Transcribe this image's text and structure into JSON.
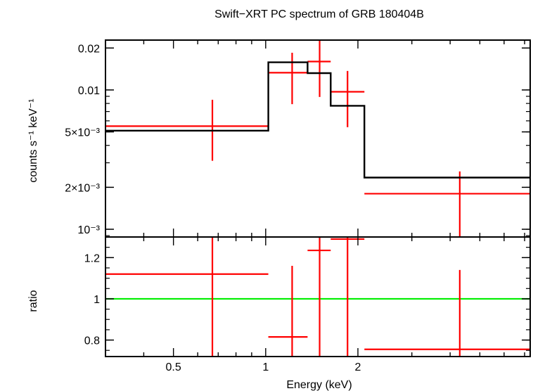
{
  "chart_data": {
    "type": "line",
    "title": "Swift−XRT PC spectrum of GRB 180404B",
    "xlabel": "Energy (keV)",
    "x_scale": "log",
    "xlim": [
      0.3,
      7.3
    ],
    "x_ticks": [
      {
        "value": 0.5,
        "label": "0.5"
      },
      {
        "value": 1,
        "label": "1"
      },
      {
        "value": 2,
        "label": "2"
      }
    ],
    "panels": [
      {
        "name": "spectrum",
        "ylabel": "counts s⁻¹ keV⁻¹",
        "y_scale": "log",
        "ylim": [
          0.00088,
          0.0228
        ],
        "y_ticks": [
          {
            "value": 0.02,
            "label": "0.02"
          },
          {
            "value": 0.01,
            "label": "0.01"
          },
          {
            "value": 0.005,
            "label": "5×10⁻³"
          },
          {
            "value": 0.002,
            "label": "2×10⁻³"
          },
          {
            "value": 0.001,
            "label": "10⁻³"
          }
        ],
        "series": [
          {
            "name": "data",
            "color": "#ff0000",
            "style": "crosses",
            "points": [
              {
                "x": 0.67,
                "x_lo": 0.3,
                "x_hi": 1.02,
                "y": 0.0055,
                "y_lo": 0.0031,
                "y_hi": 0.0085
              },
              {
                "x": 1.22,
                "x_lo": 1.02,
                "x_hi": 1.37,
                "y": 0.0133,
                "y_lo": 0.0079,
                "y_hi": 0.0185
              },
              {
                "x": 1.5,
                "x_lo": 1.37,
                "x_hi": 1.63,
                "y": 0.016,
                "y_lo": 0.0089,
                "y_hi": 0.0228
              },
              {
                "x": 1.85,
                "x_lo": 1.63,
                "x_hi": 2.1,
                "y": 0.0097,
                "y_lo": 0.0054,
                "y_hi": 0.0137
              },
              {
                "x": 4.3,
                "x_lo": 2.1,
                "x_hi": 7.3,
                "y": 0.0018,
                "y_lo": 0.00088,
                "y_hi": 0.0026
              }
            ]
          },
          {
            "name": "model",
            "color": "#000000",
            "style": "step",
            "bins": [
              {
                "x_lo": 0.3,
                "x_hi": 1.02,
                "y": 0.0051
              },
              {
                "x_lo": 1.02,
                "x_hi": 1.37,
                "y": 0.0158
              },
              {
                "x_lo": 1.37,
                "x_hi": 1.63,
                "y": 0.0132
              },
              {
                "x_lo": 1.63,
                "x_hi": 2.1,
                "y": 0.0077
              },
              {
                "x_lo": 2.1,
                "x_hi": 7.3,
                "y": 0.00235
              }
            ]
          }
        ]
      },
      {
        "name": "ratio",
        "ylabel": "ratio",
        "y_scale": "linear",
        "ylim": [
          0.72,
          1.3
        ],
        "y_ticks": [
          {
            "value": 1.2,
            "label": "1.2"
          },
          {
            "value": 1,
            "label": "1"
          },
          {
            "value": 0.8,
            "label": "0.8"
          }
        ],
        "reference_line": {
          "y": 1.0,
          "color": "#00ee00"
        },
        "series": [
          {
            "name": "ratio",
            "color": "#ff0000",
            "style": "crosses",
            "points": [
              {
                "x": 0.67,
                "x_lo": 0.3,
                "x_hi": 1.02,
                "y": 1.12,
                "y_lo": 0.72,
                "y_hi": 1.3
              },
              {
                "x": 1.22,
                "x_lo": 1.02,
                "x_hi": 1.37,
                "y": 0.815,
                "y_lo": 0.72,
                "y_hi": 1.16
              },
              {
                "x": 1.5,
                "x_lo": 1.37,
                "x_hi": 1.63,
                "y": 1.235,
                "y_lo": 0.72,
                "y_hi": 1.3
              },
              {
                "x": 1.85,
                "x_lo": 1.63,
                "x_hi": 2.1,
                "y": 1.29,
                "y_lo": 0.72,
                "y_hi": 1.3
              },
              {
                "x": 4.3,
                "x_lo": 2.1,
                "x_hi": 7.3,
                "y": 0.755,
                "y_lo": 0.72,
                "y_hi": 1.14
              }
            ]
          }
        ]
      }
    ]
  }
}
